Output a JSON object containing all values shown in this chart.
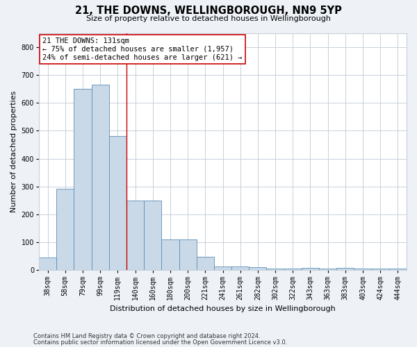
{
  "title_line1": "21, THE DOWNS, WELLINGBOROUGH, NN9 5YP",
  "title_line2": "Size of property relative to detached houses in Wellingborough",
  "xlabel": "Distribution of detached houses by size in Wellingborough",
  "ylabel": "Number of detached properties",
  "categories": [
    "38sqm",
    "58sqm",
    "79sqm",
    "99sqm",
    "119sqm",
    "140sqm",
    "160sqm",
    "180sqm",
    "200sqm",
    "221sqm",
    "241sqm",
    "261sqm",
    "282sqm",
    "302sqm",
    "322sqm",
    "343sqm",
    "363sqm",
    "383sqm",
    "403sqm",
    "424sqm",
    "444sqm"
  ],
  "values": [
    45,
    293,
    650,
    665,
    480,
    250,
    250,
    110,
    110,
    48,
    14,
    14,
    10,
    5,
    5,
    8,
    5,
    8,
    5,
    5,
    5
  ],
  "bar_color": "#c9d9e8",
  "bar_edge_color": "#5b8db8",
  "annotation_box_text": "21 THE DOWNS: 131sqm\n← 75% of detached houses are smaller (1,957)\n24% of semi-detached houses are larger (621) →",
  "red_line_x": 4.5,
  "ymax": 850,
  "yticks": [
    0,
    100,
    200,
    300,
    400,
    500,
    600,
    700,
    800
  ],
  "footer_line1": "Contains HM Land Registry data © Crown copyright and database right 2024.",
  "footer_line2": "Contains public sector information licensed under the Open Government Licence v3.0.",
  "background_color": "#eef2f7",
  "plot_background_color": "#ffffff",
  "grid_color": "#c8d0dc",
  "annotation_box_color": "#ffffff",
  "annotation_box_edge_color": "#cc0000",
  "red_line_color": "#cc0000",
  "title1_fontsize": 10.5,
  "title2_fontsize": 8,
  "ylabel_fontsize": 8,
  "xlabel_fontsize": 8,
  "tick_fontsize": 7,
  "footer_fontsize": 6,
  "annot_fontsize": 7.5
}
